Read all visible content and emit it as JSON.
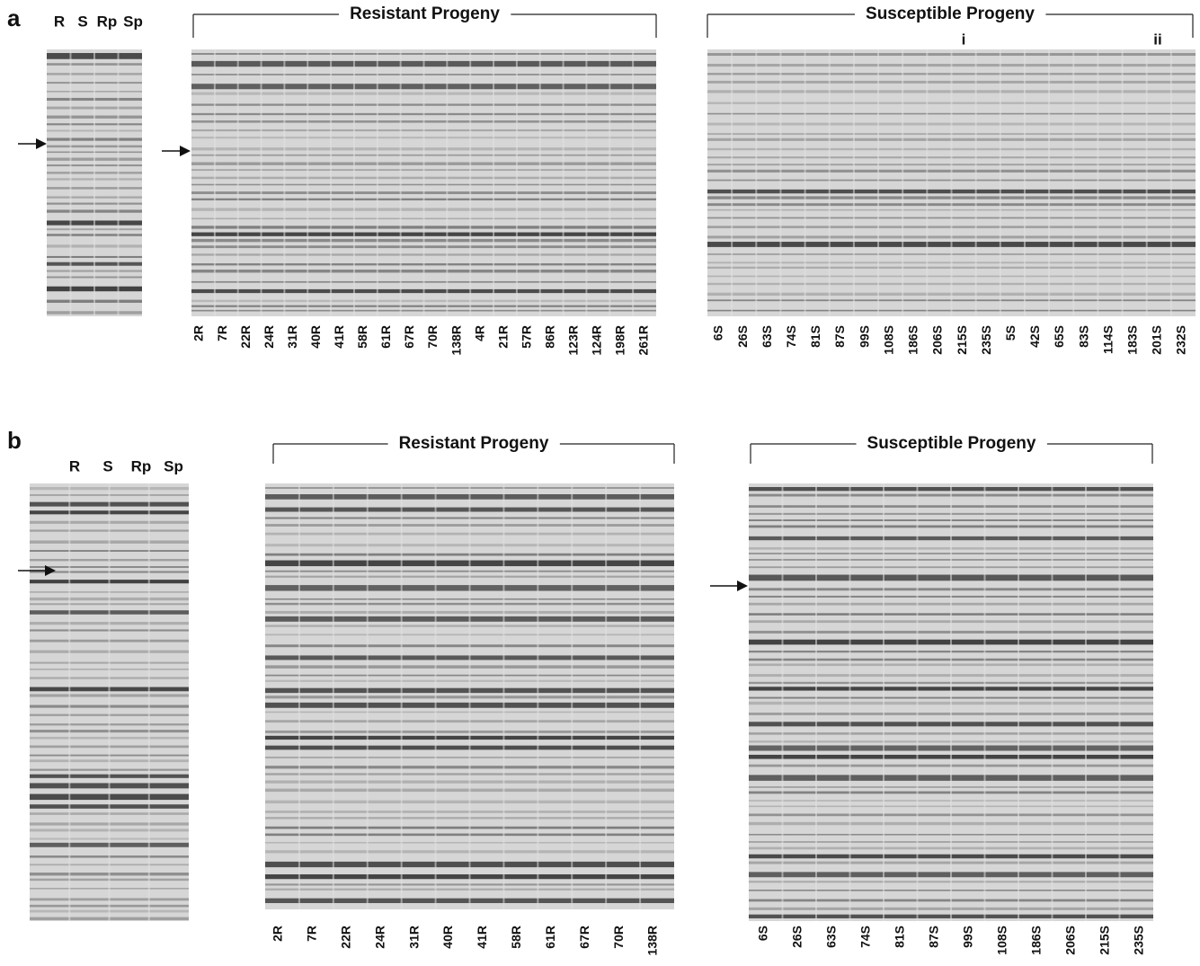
{
  "panels": [
    {
      "label": "a",
      "parents": [
        "R",
        "S",
        "Rp",
        "Sp"
      ],
      "groups": [
        {
          "title": "Resistant Progeny",
          "lanes": [
            "2R",
            "7R",
            "22R",
            "24R",
            "31R",
            "40R",
            "41R",
            "58R",
            "61R",
            "67R",
            "70R",
            "138R",
            "4R",
            "21R",
            "57R",
            "86R",
            "123R",
            "124R",
            "198R",
            "261R"
          ]
        },
        {
          "title": "Susceptible Progeny",
          "lanes": [
            "6S",
            "26S",
            "63S",
            "74S",
            "81S",
            "87S",
            "99S",
            "108S",
            "186S",
            "206S",
            "215S",
            "235S",
            "5S",
            "42S",
            "65S",
            "83S",
            "114S",
            "183S",
            "201S",
            "232S"
          ],
          "markers": [
            "i",
            "ii"
          ]
        }
      ]
    },
    {
      "label": "b",
      "parents": [
        "R",
        "S",
        "Rp",
        "Sp"
      ],
      "groups": [
        {
          "title": "Resistant Progeny",
          "lanes": [
            "2R",
            "7R",
            "22R",
            "24R",
            "31R",
            "40R",
            "41R",
            "58R",
            "61R",
            "67R",
            "70R",
            "138R"
          ]
        },
        {
          "title": "Susceptible Progeny",
          "lanes": [
            "6S",
            "26S",
            "63S",
            "74S",
            "81S",
            "87S",
            "99S",
            "108S",
            "186S",
            "206S",
            "215S",
            "235S"
          ]
        }
      ]
    }
  ]
}
